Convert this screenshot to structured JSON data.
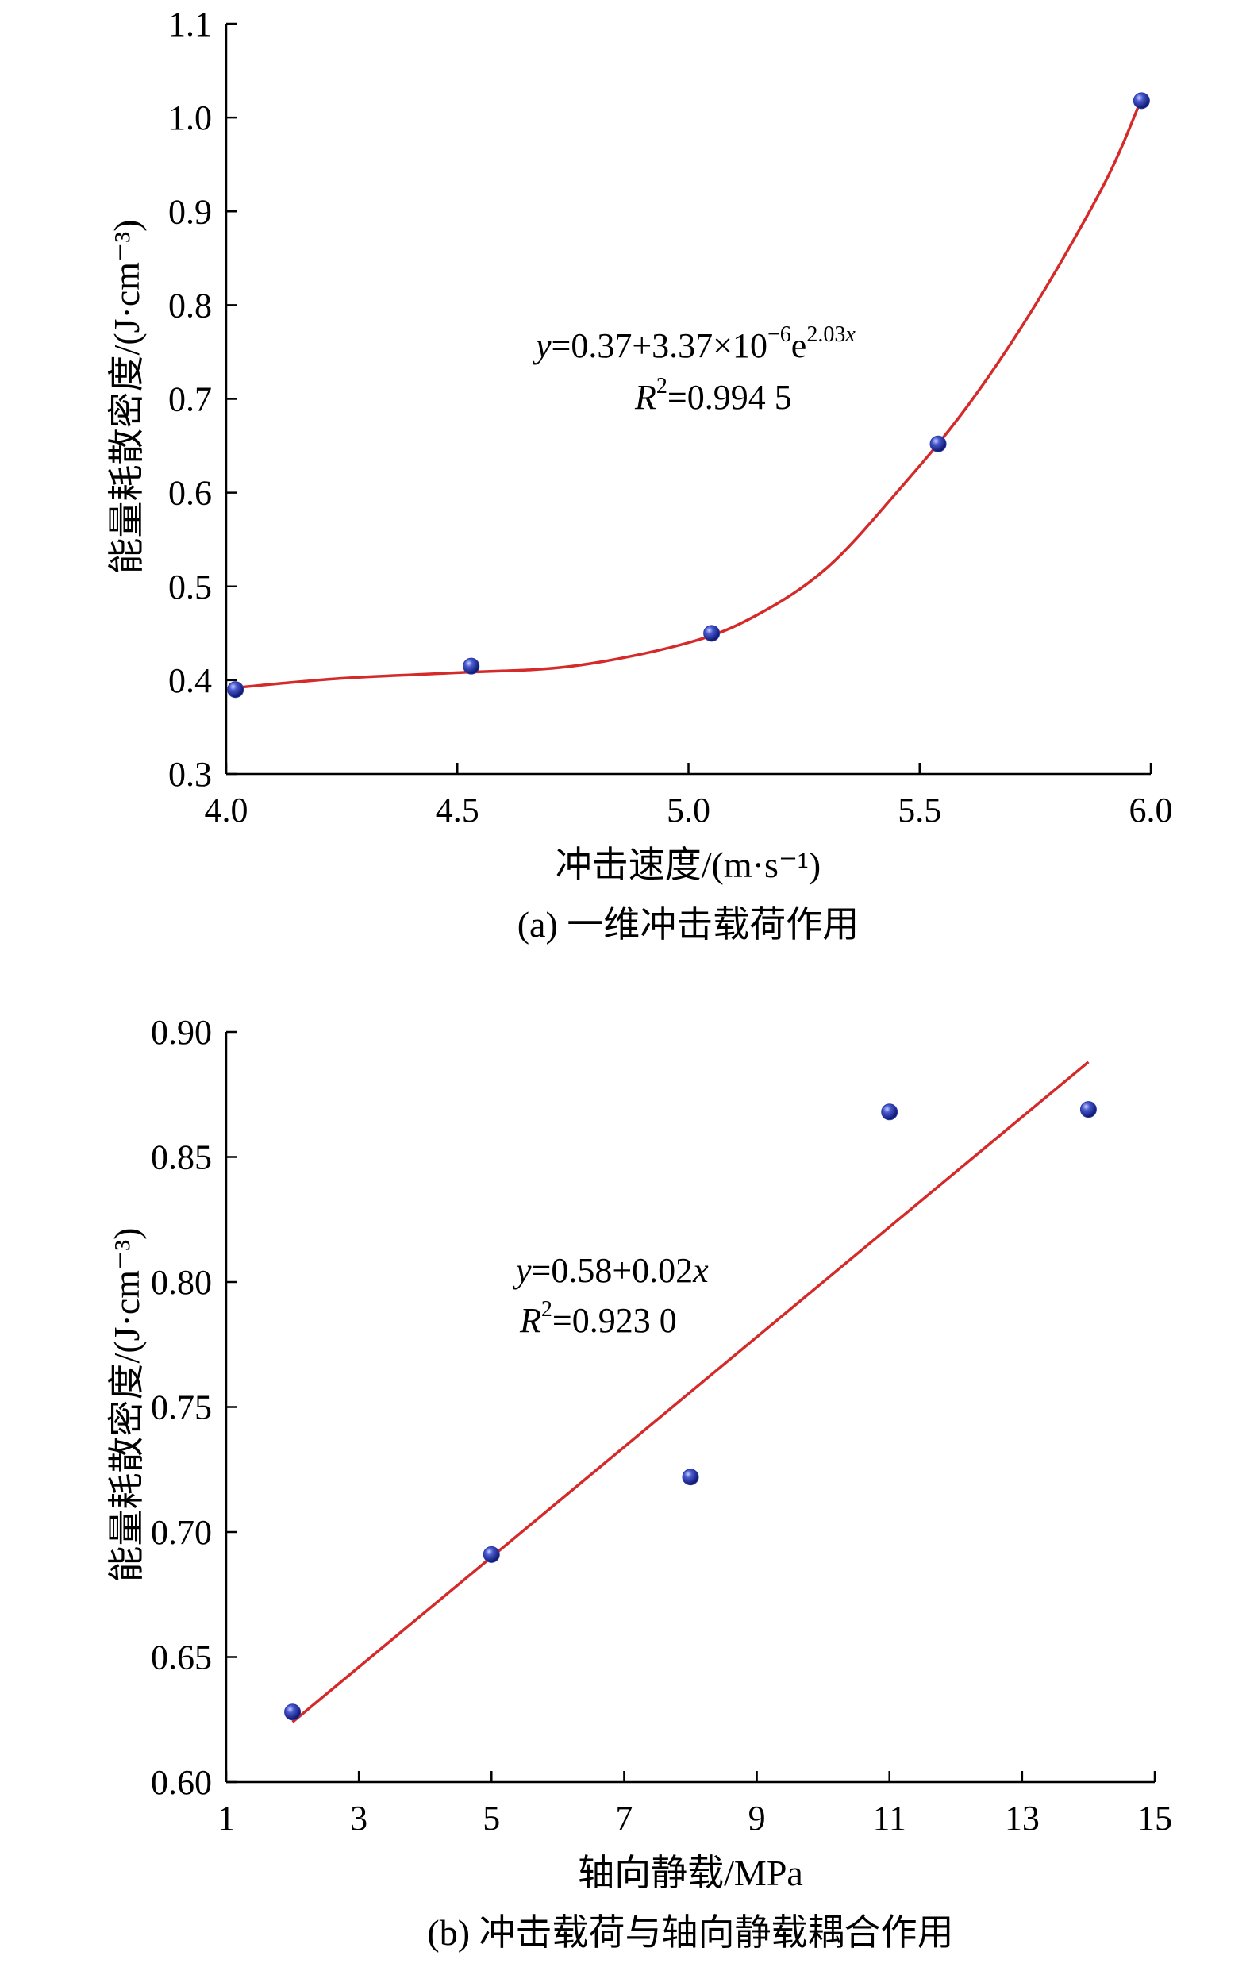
{
  "chart_data": [
    {
      "type": "scatter",
      "xlabel": "冲击速度/(m·s⁻¹)",
      "ylabel": "能量耗散密度/(J·cm⁻³)",
      "caption": "(a) 一维冲击载荷作用",
      "xlim": [
        4.0,
        6.0
      ],
      "ylim": [
        0.3,
        1.1
      ],
      "xticks": [
        "4.0",
        "4.5",
        "5.0",
        "5.5",
        "6.0"
      ],
      "yticks": [
        "0.3",
        "0.4",
        "0.5",
        "0.6",
        "0.7",
        "0.8",
        "0.9",
        "1.0",
        "1.1"
      ],
      "x": [
        4.02,
        4.53,
        5.05,
        5.54,
        5.98
      ],
      "y": [
        0.39,
        0.415,
        0.45,
        0.652,
        1.018
      ],
      "fit_x": [
        4.02,
        4.25,
        4.5,
        4.75,
        5.0,
        5.15,
        5.3,
        5.45,
        5.6,
        5.75,
        5.9,
        5.98
      ],
      "fit_y": [
        0.392,
        0.402,
        0.408,
        0.415,
        0.44,
        0.47,
        0.52,
        0.6,
        0.69,
        0.8,
        0.93,
        1.02
      ],
      "equation": {
        "y_var": "y",
        "eq_a": "=0.37+3.37×10",
        "exp_a": "−6",
        "eq_b": "e",
        "exp_b": "2.03",
        "exp_b_var": "x",
        "r_var": "R",
        "r_exp": "2",
        "r_val": "=0.994 5"
      },
      "marker_color": "#2a39a8",
      "line_color": "#d42a2a"
    },
    {
      "type": "scatter",
      "xlabel": "轴向静载/MPa",
      "ylabel": "能量耗散密度/(J·cm⁻³)",
      "caption": "(b) 冲击载荷与轴向静载耦合作用",
      "xlim": [
        1,
        15
      ],
      "ylim": [
        0.6,
        0.9
      ],
      "xticks": [
        "1",
        "3",
        "5",
        "7",
        "9",
        "11",
        "13",
        "15"
      ],
      "yticks": [
        "0.60",
        "0.65",
        "0.70",
        "0.75",
        "0.80",
        "0.85",
        "0.90"
      ],
      "x": [
        2,
        5,
        8,
        11,
        14
      ],
      "y": [
        0.628,
        0.691,
        0.722,
        0.868,
        0.869
      ],
      "fit_x": [
        2,
        14
      ],
      "fit_y": [
        0.624,
        0.888
      ],
      "equation": {
        "y_var": "y",
        "eq_a": "=0.58+0.02",
        "eq_a_var": "x",
        "r_var": "R",
        "r_exp": "2",
        "r_val": "=0.923 0"
      },
      "marker_color": "#2a39a8",
      "line_color": "#d42a2a"
    }
  ]
}
